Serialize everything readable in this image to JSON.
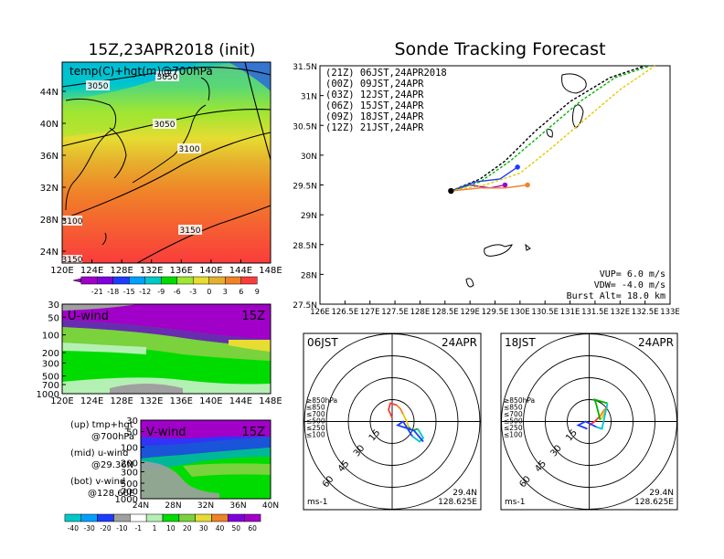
{
  "left_title": "15Z,23APR2018 (init)",
  "right_title": "Sonde Tracking Forecast",
  "map": {
    "label": "temp(C)+hgt(m)@700hPa",
    "lon_ticks": [
      "120E",
      "124E",
      "128E",
      "132E",
      "136E",
      "140E",
      "144E",
      "148E"
    ],
    "lat_ticks": [
      "44N",
      "40N",
      "36N",
      "32N",
      "28N",
      "24N"
    ],
    "contour_labels": [
      "3050",
      "3050",
      "3050",
      "3100",
      "3100",
      "3150",
      "3150"
    ],
    "colorbar_labels": [
      "-21",
      "-18",
      "-15",
      "-12",
      "-9",
      "-6",
      "-3",
      "0",
      "3",
      "6",
      "9"
    ],
    "colorbar_colors": [
      "#a000c8",
      "#8200dc",
      "#1e3cff",
      "#00a0ff",
      "#00c8c8",
      "#00dc00",
      "#a0e632",
      "#e6dc32",
      "#e6af2d",
      "#f08228",
      "#fa3c3c"
    ]
  },
  "uwind": {
    "label": "U-wind",
    "time": "15Z",
    "y_ticks": [
      "30",
      "50",
      "100",
      "200",
      "300",
      "500",
      "700",
      "1000"
    ],
    "x_ticks": [
      "120E",
      "124E",
      "128E",
      "132E",
      "136E",
      "140E",
      "144E",
      "148E"
    ]
  },
  "vwind": {
    "label": "V-wind",
    "time": "15Z",
    "y_ticks": [
      "30",
      "50",
      "100",
      "200",
      "300",
      "500",
      "700",
      "1000"
    ],
    "x_ticks": [
      "24N",
      "28N",
      "32N",
      "36N",
      "40N"
    ]
  },
  "legend_notes": [
    {
      "line1": "(up) tmp+hgt",
      "line2": "@700hPa"
    },
    {
      "line1": "(mid) u-wind",
      "line2": "@29.36N"
    },
    {
      "line1": "(bot) v-wind",
      "line2": "@128.66E"
    }
  ],
  "wind_colorbar": {
    "labels": [
      "-40",
      "-30",
      "-20",
      "-10",
      "-1",
      "1",
      "10",
      "20",
      "30",
      "40",
      "50",
      "60"
    ],
    "colors": [
      "#00c8c8",
      "#00a0ff",
      "#1e3cff",
      "#a0a0a0",
      "#ffffff",
      "#b4f0b4",
      "#00dc00",
      "#7ad23c",
      "#e6dc32",
      "#f08228",
      "#8200dc",
      "#a000c8"
    ]
  },
  "track": {
    "x_ticks": [
      "126E",
      "126.5E",
      "127E",
      "127.5E",
      "128E",
      "128.5E",
      "129E",
      "129.5E",
      "130E",
      "130.5E",
      "131E",
      "131.5E",
      "132E",
      "132.5E",
      "133E"
    ],
    "y_ticks": [
      "31.5N",
      "31N",
      "30.5N",
      "30N",
      "29.5N",
      "29N",
      "28.5N",
      "28N",
      "27.5N"
    ],
    "legend": [
      {
        "text": "(21Z) 06JST,24APR2018",
        "color": "#000000"
      },
      {
        "text": "(00Z) 09JST,24APR",
        "color": "#a000c8"
      },
      {
        "text": "(03Z) 12JST,24APR",
        "color": "#1e3cff"
      },
      {
        "text": "(06Z) 15JST,24APR",
        "color": "#00b400"
      },
      {
        "text": "(09Z) 18JST,24APR",
        "color": "#e6c800"
      },
      {
        "text": "(12Z) 21JST,24APR",
        "color": "#f08228"
      }
    ],
    "info": [
      "VUP=  6.0  m/s",
      "VDW= -4.0  m/s",
      "Burst Alt=  18.0  km"
    ]
  },
  "chart_data": {
    "type": "line",
    "title": "Sonde Tracking Forecast",
    "xlim": [
      126,
      133
    ],
    "ylim": [
      27.5,
      31.5
    ],
    "series": [
      {
        "name": "(21Z) 06JST,24APR2018",
        "x": [
          128.62,
          129.2,
          129.7,
          130.3,
          131.0,
          131.8,
          132.5
        ],
        "y": [
          29.4,
          29.6,
          29.9,
          30.4,
          30.9,
          31.3,
          31.5
        ]
      },
      {
        "name": "(00Z) 09JST,24APR",
        "x": [
          128.62,
          129.0,
          129.4,
          129.7
        ],
        "y": [
          29.4,
          29.5,
          29.45,
          29.5
        ]
      },
      {
        "name": "(03Z) 12JST,24APR",
        "x": [
          128.62,
          129.1,
          129.6,
          129.95
        ],
        "y": [
          29.4,
          29.55,
          29.6,
          29.8
        ]
      },
      {
        "name": "(06Z) 15JST,24APR",
        "x": [
          128.62,
          129.2,
          129.8,
          130.5,
          131.2,
          131.9,
          132.6
        ],
        "y": [
          29.4,
          29.55,
          29.9,
          30.4,
          30.9,
          31.3,
          31.5
        ]
      },
      {
        "name": "(09Z) 18JST,24APR",
        "x": [
          128.62,
          129.3,
          130.0,
          130.6,
          131.3,
          132.0,
          132.7
        ],
        "y": [
          29.4,
          29.5,
          29.7,
          30.1,
          30.6,
          31.1,
          31.5
        ]
      },
      {
        "name": "(12Z) 21JST,24APR",
        "x": [
          128.62,
          129.2,
          129.7,
          130.15
        ],
        "y": [
          29.4,
          29.45,
          29.45,
          29.5
        ]
      }
    ]
  },
  "hodo_left": {
    "title": "06JST",
    "date": "24APR",
    "lat": "29.4N",
    "lon": "128.625E",
    "unit": "ms-1",
    "rings": [
      "15",
      "30",
      "45",
      "60"
    ],
    "levels": [
      "≥850hPa",
      "≤850",
      "≤700",
      "≤500",
      "≤250",
      "≤100"
    ]
  },
  "hodo_right": {
    "title": "18JST",
    "date": "24APR",
    "lat": "29.4N",
    "lon": "128.625E",
    "unit": "ms-1",
    "rings": [
      "15",
      "30",
      "45",
      "60"
    ],
    "levels": [
      "≥850hPa",
      "≤850",
      "≤700",
      "≤500",
      "≤250",
      "≤100"
    ]
  },
  "level_colors": [
    "#fa3c3c",
    "#f08228",
    "#e6c800",
    "#00b400",
    "#00c8c8",
    "#1e3cff"
  ]
}
